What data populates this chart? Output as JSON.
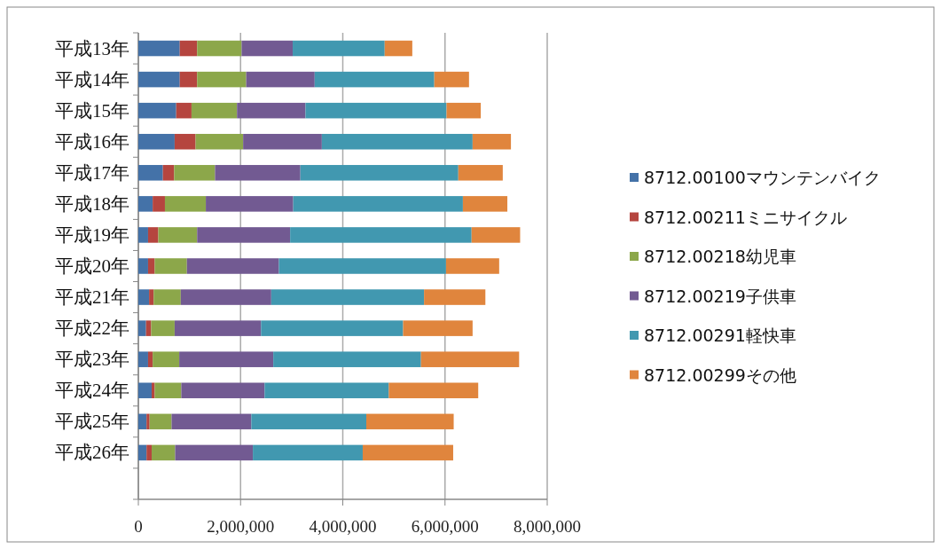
{
  "chart_data": {
    "type": "bar",
    "orientation": "horizontal",
    "stacked": true,
    "categories": [
      "平成13年",
      "平成14年",
      "平成15年",
      "平成16年",
      "平成17年",
      "平成18年",
      "平成19年",
      "平成20年",
      "平成21年",
      "平成22年",
      "平成23年",
      "平成24年",
      "平成25年",
      "平成26年",
      null
    ],
    "series": [
      {
        "name": "8712.00100マウンテンバイク",
        "color": "#4472a8",
        "values": [
          810000,
          810000,
          740000,
          710000,
          480000,
          280000,
          190000,
          190000,
          210000,
          150000,
          190000,
          260000,
          160000,
          160000,
          null
        ]
      },
      {
        "name": "8712.00211ミニサイクル",
        "color": "#b5453f",
        "values": [
          340000,
          340000,
          300000,
          410000,
          220000,
          240000,
          200000,
          130000,
          90000,
          100000,
          90000,
          60000,
          60000,
          100000,
          null
        ]
      },
      {
        "name": "8712.00218幼児車",
        "color": "#8ca74a",
        "values": [
          870000,
          960000,
          890000,
          930000,
          800000,
          800000,
          760000,
          630000,
          530000,
          460000,
          520000,
          520000,
          430000,
          460000,
          null
        ]
      },
      {
        "name": "8712.00219子供車",
        "color": "#725a92",
        "values": [
          1000000,
          1340000,
          1340000,
          1540000,
          1670000,
          1710000,
          1820000,
          1800000,
          1770000,
          1690000,
          1840000,
          1630000,
          1560000,
          1520000,
          null
        ]
      },
      {
        "name": "8712.00291軽快車",
        "color": "#4198b0",
        "values": [
          1800000,
          2340000,
          2760000,
          2950000,
          3090000,
          3320000,
          3550000,
          3270000,
          2990000,
          2780000,
          2890000,
          2430000,
          2250000,
          2150000,
          null
        ]
      },
      {
        "name": "8712.00299その他",
        "color": "#e0853d",
        "values": [
          540000,
          680000,
          670000,
          750000,
          870000,
          870000,
          950000,
          1040000,
          1200000,
          1360000,
          1920000,
          1750000,
          1710000,
          1770000,
          null
        ]
      }
    ],
    "xlim": [
      0,
      8000000
    ],
    "xticks": [
      {
        "value": 0,
        "label": "0"
      },
      {
        "value": 2000000,
        "label": "2,000,000"
      },
      {
        "value": 4000000,
        "label": "4,000,000"
      },
      {
        "value": 6000000,
        "label": "6,000,000"
      },
      {
        "value": 8000000,
        "label": "8,000,000"
      }
    ],
    "grid": "x",
    "legend": "right"
  }
}
